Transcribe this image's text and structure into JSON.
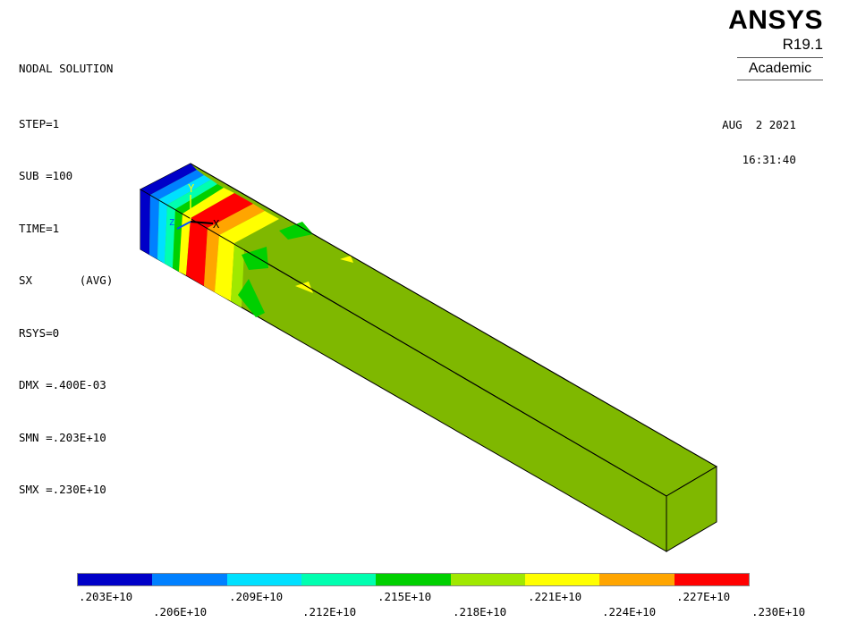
{
  "solution_info": {
    "title": "NODAL SOLUTION",
    "lines": [
      "STEP=1",
      "SUB =100",
      "TIME=1",
      "SX       (AVG)",
      "RSYS=0",
      "DMX =.400E-03",
      "SMN =.203E+10",
      "SMX =.230E+10"
    ]
  },
  "logo": {
    "name": "ANSYS",
    "version": "R19.1",
    "edition": "Academic"
  },
  "datetime": {
    "date": "AUG  2 2021",
    "time": "16:31:40"
  },
  "triad": {
    "x_label": "X",
    "y_label": "Y",
    "z_label": "Z"
  },
  "model": {
    "dominant_color": "#7fb800",
    "max_color": "#cc0000"
  },
  "legend": {
    "colors": [
      "#0000c8",
      "#0080ff",
      "#00e0ff",
      "#00ffb0",
      "#00d000",
      "#a0e800",
      "#ffff00",
      "#ffa500",
      "#ff0000"
    ],
    "labels_top": [
      ".203E+10",
      ".209E+10",
      ".215E+10",
      ".221E+10",
      ".227E+10"
    ],
    "labels_bottom": [
      ".206E+10",
      ".212E+10",
      ".218E+10",
      ".224E+10",
      ".230E+10"
    ]
  }
}
